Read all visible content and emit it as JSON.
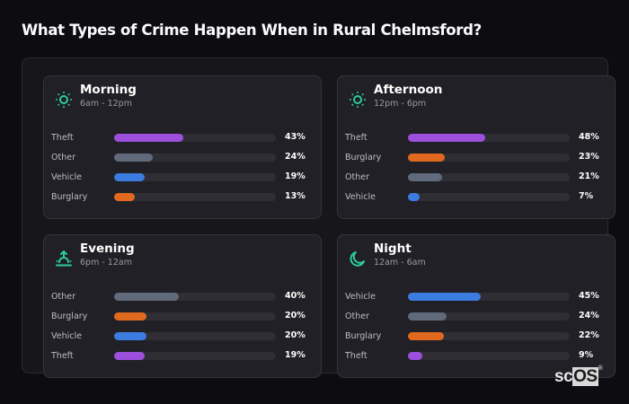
{
  "title": "What Types of Crime Happen When in Rural Chelmsford?",
  "colors": {
    "Theft": "#9b4fdc",
    "Other": "#606a7a",
    "Vehicle": "#3c7be0",
    "Burglary": "#e0691f",
    "accent": "#2dcc9a"
  },
  "cards": [
    {
      "name": "Morning",
      "range": "6am - 12pm",
      "icon": "sun-icon",
      "rows": [
        {
          "label": "Theft",
          "value": 43,
          "pct": "43%"
        },
        {
          "label": "Other",
          "value": 24,
          "pct": "24%"
        },
        {
          "label": "Vehicle",
          "value": 19,
          "pct": "19%"
        },
        {
          "label": "Burglary",
          "value": 13,
          "pct": "13%"
        }
      ]
    },
    {
      "name": "Afternoon",
      "range": "12pm - 6pm",
      "icon": "sun-icon",
      "rows": [
        {
          "label": "Theft",
          "value": 48,
          "pct": "48%"
        },
        {
          "label": "Burglary",
          "value": 23,
          "pct": "23%"
        },
        {
          "label": "Other",
          "value": 21,
          "pct": "21%"
        },
        {
          "label": "Vehicle",
          "value": 7,
          "pct": "7%"
        }
      ]
    },
    {
      "name": "Evening",
      "range": "6pm - 12am",
      "icon": "sunset-icon",
      "rows": [
        {
          "label": "Other",
          "value": 40,
          "pct": "40%"
        },
        {
          "label": "Burglary",
          "value": 20,
          "pct": "20%"
        },
        {
          "label": "Vehicle",
          "value": 20,
          "pct": "20%"
        },
        {
          "label": "Theft",
          "value": 19,
          "pct": "19%"
        }
      ]
    },
    {
      "name": "Night",
      "range": "12am - 6am",
      "icon": "moon-icon",
      "rows": [
        {
          "label": "Vehicle",
          "value": 45,
          "pct": "45%"
        },
        {
          "label": "Other",
          "value": 24,
          "pct": "24%"
        },
        {
          "label": "Burglary",
          "value": 22,
          "pct": "22%"
        },
        {
          "label": "Theft",
          "value": 9,
          "pct": "9%"
        }
      ]
    }
  ],
  "logo": {
    "sc": "sc",
    "os": "OS",
    "reg": "®"
  },
  "chart_data": {
    "type": "bar",
    "title": "What Types of Crime Happen When in Rural Chelmsford?",
    "orientation": "horizontal",
    "panels": [
      {
        "title": "Morning",
        "subtitle": "6am - 12pm",
        "categories": [
          "Theft",
          "Other",
          "Vehicle",
          "Burglary"
        ],
        "values": [
          43,
          24,
          19,
          13
        ]
      },
      {
        "title": "Afternoon",
        "subtitle": "12pm - 6pm",
        "categories": [
          "Theft",
          "Burglary",
          "Other",
          "Vehicle"
        ],
        "values": [
          48,
          23,
          21,
          7
        ]
      },
      {
        "title": "Evening",
        "subtitle": "6pm - 12am",
        "categories": [
          "Other",
          "Burglary",
          "Vehicle",
          "Theft"
        ],
        "values": [
          40,
          20,
          20,
          19
        ]
      },
      {
        "title": "Night",
        "subtitle": "12am - 6am",
        "categories": [
          "Vehicle",
          "Other",
          "Burglary",
          "Theft"
        ],
        "values": [
          45,
          24,
          22,
          9
        ]
      }
    ],
    "unit": "%",
    "xlim": [
      0,
      100
    ],
    "grid": false,
    "legend": "none"
  }
}
